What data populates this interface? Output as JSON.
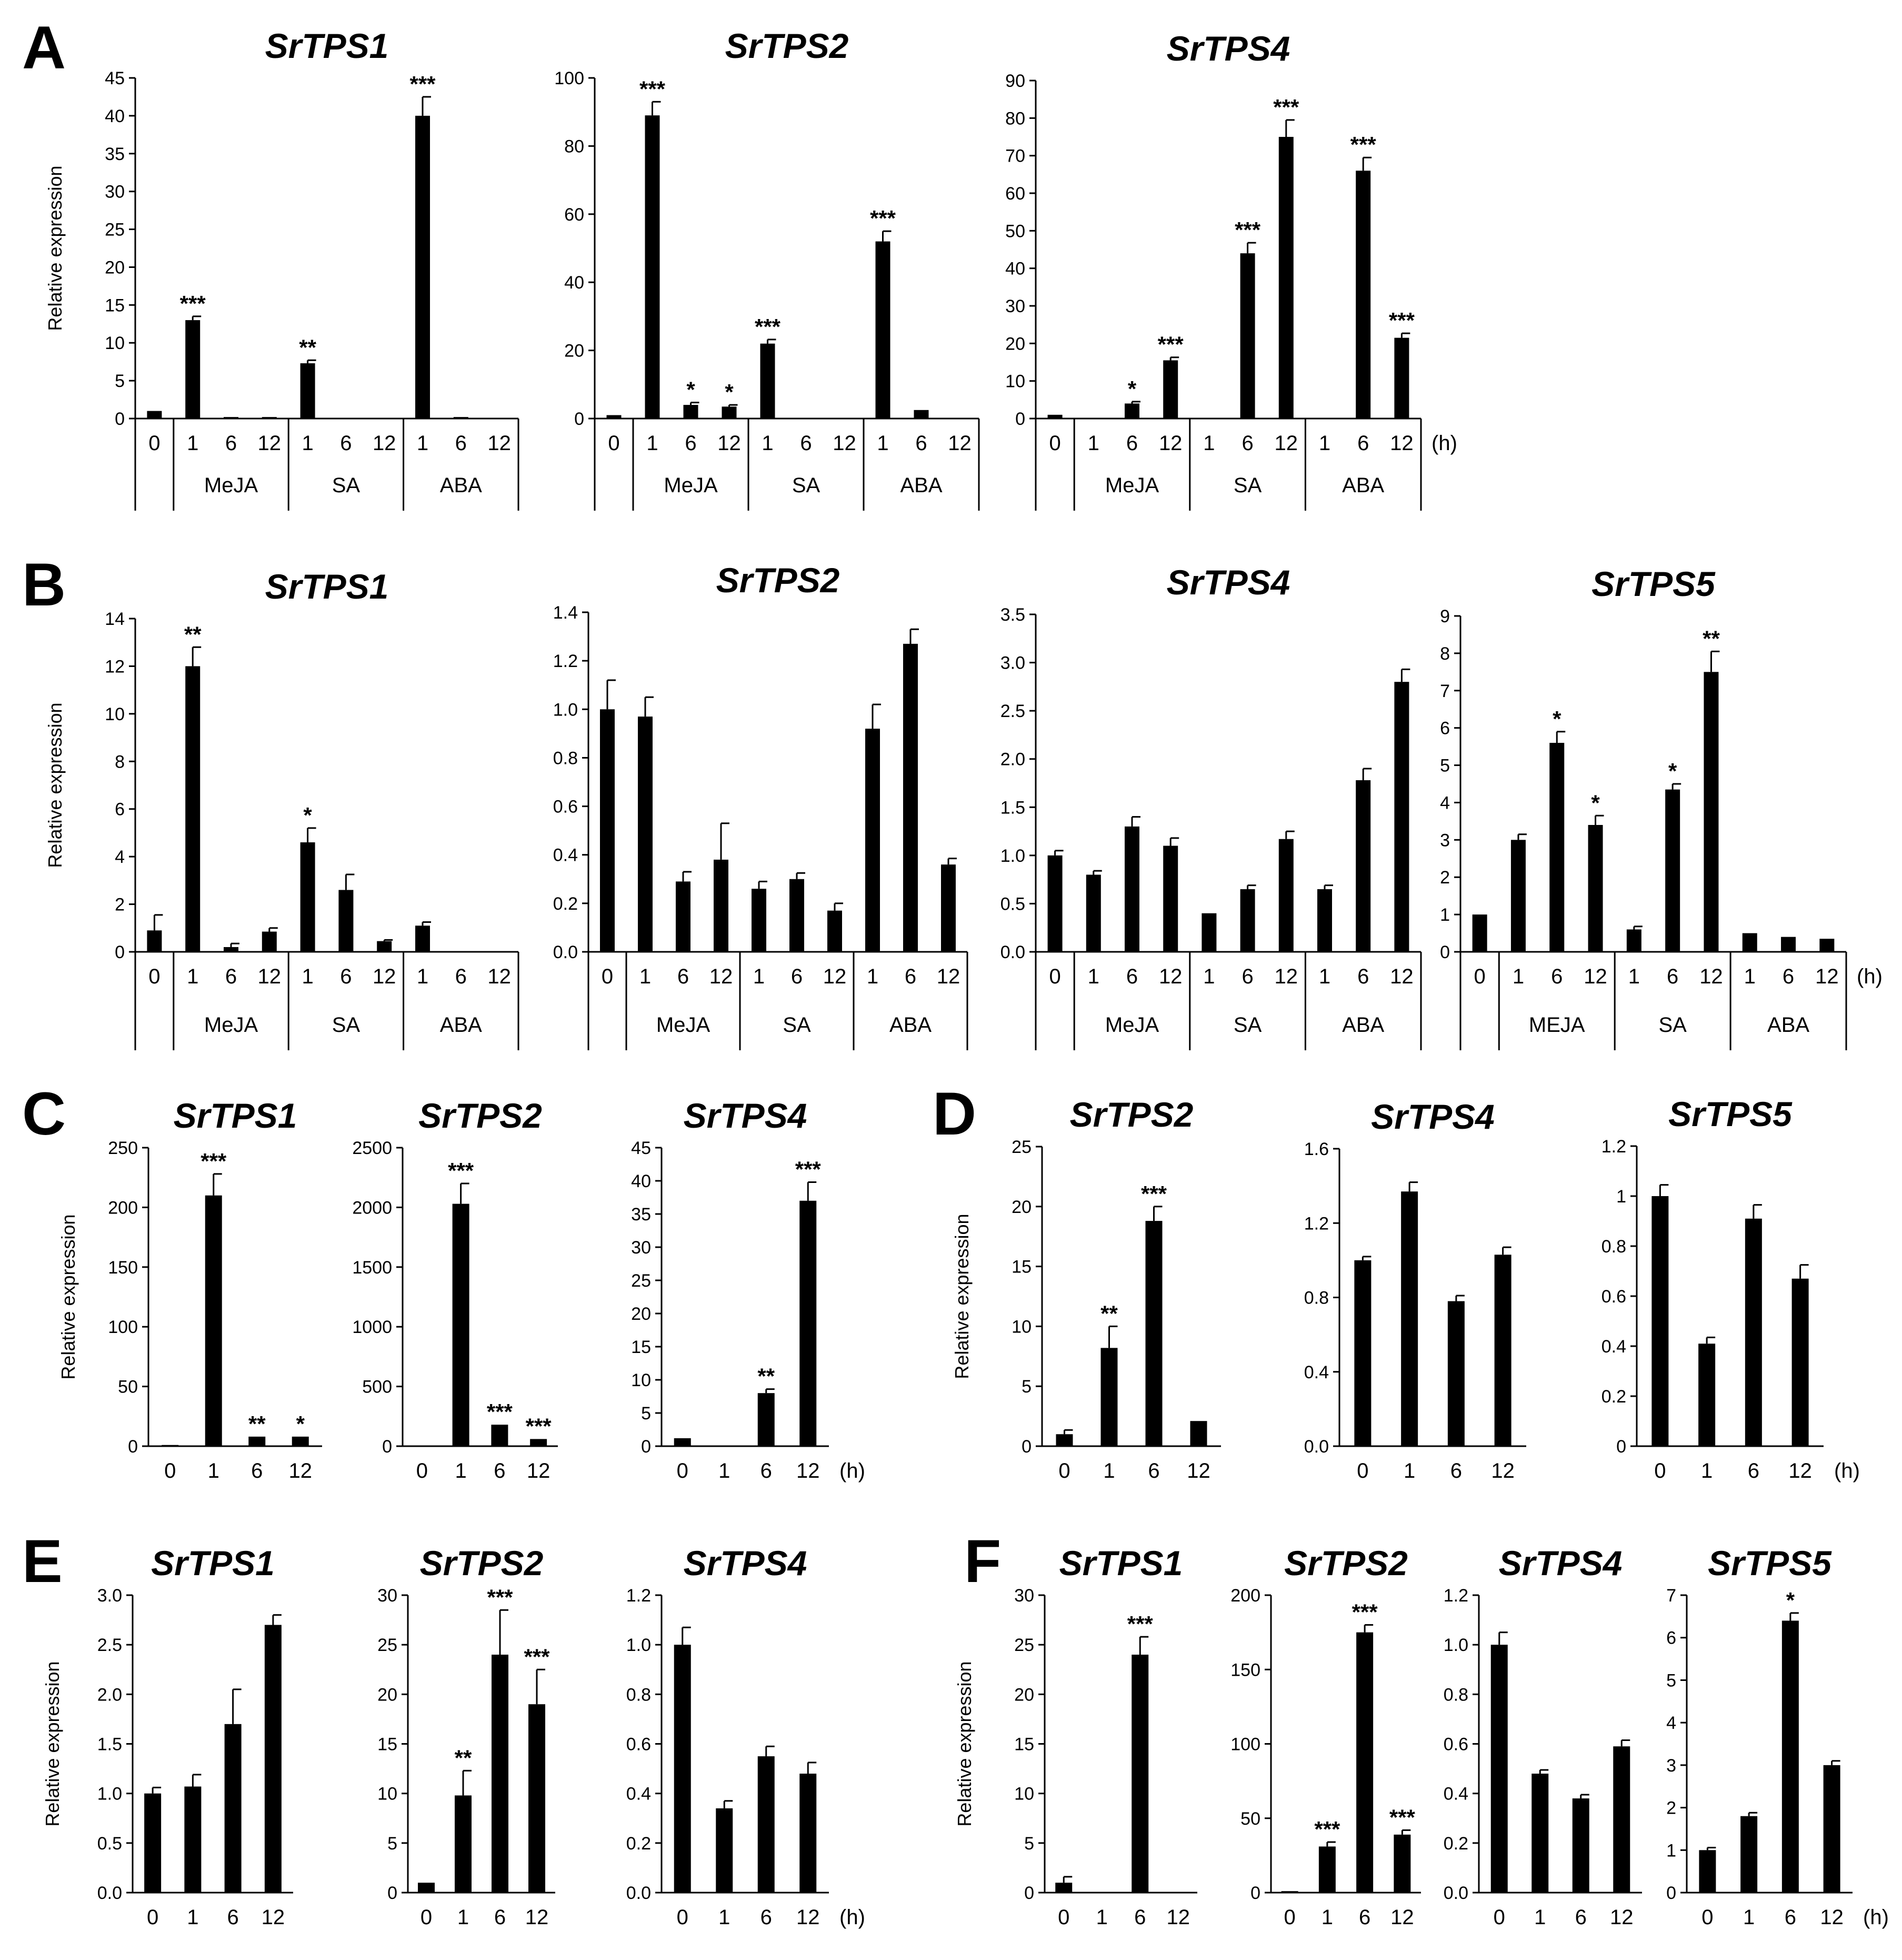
{
  "colors": {
    "bar": "#000000",
    "axis": "#000000",
    "background": "#ffffff"
  },
  "y_label": "Relative expression",
  "hour_unit": "(h)",
  "panel_letters": [
    "A",
    "B",
    "C",
    "D",
    "E",
    "F"
  ],
  "chart_data": [
    {
      "panel": "A",
      "type": "bar",
      "title": "SrTPS1",
      "ylabel": "Relative expression",
      "ylim": [
        0,
        45
      ],
      "yticks": [
        "0",
        "5",
        "10",
        "15",
        "20",
        "25",
        "30",
        "35",
        "40",
        "45"
      ],
      "categories": [
        "0",
        "1",
        "6",
        "12",
        "1",
        "6",
        "12",
        "1",
        "6",
        "12"
      ],
      "groups": [
        "MeJA",
        "SA",
        "ABA"
      ],
      "values": [
        1,
        13,
        0.2,
        0.2,
        7.3,
        0,
        0,
        40,
        0.2,
        0
      ],
      "errors": [
        0,
        0.5,
        0,
        0,
        0.4,
        0,
        0,
        2.5,
        0,
        0
      ],
      "stars": [
        "",
        "***",
        "",
        "",
        "**",
        "",
        "",
        "***",
        "",
        ""
      ]
    },
    {
      "panel": "A",
      "type": "bar",
      "title": "SrTPS2",
      "ylabel": "",
      "ylim": [
        0,
        100
      ],
      "yticks": [
        "0",
        "20",
        "40",
        "60",
        "80",
        "100"
      ],
      "categories": [
        "0",
        "1",
        "6",
        "12",
        "1",
        "6",
        "12",
        "1",
        "6",
        "12"
      ],
      "groups": [
        "MeJA",
        "SA",
        "ABA"
      ],
      "values": [
        1,
        89,
        4,
        3.5,
        22,
        0,
        0,
        52,
        2.5,
        0
      ],
      "errors": [
        0,
        4,
        0.7,
        0.5,
        1.2,
        0,
        0,
        3,
        0,
        0
      ],
      "stars": [
        "",
        "***",
        "*",
        "*",
        "***",
        "",
        "",
        "***",
        "",
        ""
      ]
    },
    {
      "panel": "A",
      "type": "bar",
      "title": "SrTPS4",
      "ylabel": "",
      "ylim": [
        0,
        90
      ],
      "yticks": [
        "0",
        "10",
        "20",
        "30",
        "40",
        "50",
        "60",
        "70",
        "80",
        "90"
      ],
      "categories": [
        "0",
        "1",
        "6",
        "12",
        "1",
        "6",
        "12",
        "1",
        "6",
        "12"
      ],
      "groups": [
        "MeJA",
        "SA",
        "ABA"
      ],
      "values": [
        1,
        0,
        4,
        15.5,
        0,
        44,
        75,
        0,
        66,
        21.5
      ],
      "errors": [
        0,
        0,
        0.5,
        0.8,
        0,
        2.8,
        4.5,
        0,
        3.5,
        1.2
      ],
      "stars": [
        "",
        "",
        "*",
        "***",
        "",
        "***",
        "***",
        "",
        "***",
        "***"
      ],
      "unit": "(h)"
    },
    {
      "panel": "B",
      "type": "bar",
      "title": "SrTPS1",
      "ylabel": "Relative expression",
      "ylim": [
        0,
        14
      ],
      "yticks": [
        "0",
        "2",
        "4",
        "6",
        "8",
        "10",
        "12",
        "14"
      ],
      "categories": [
        "0",
        "1",
        "6",
        "12",
        "1",
        "6",
        "12",
        "1",
        "6",
        "12"
      ],
      "groups": [
        "MeJA",
        "SA",
        "ABA"
      ],
      "values": [
        0.9,
        12,
        0.2,
        0.85,
        4.6,
        2.6,
        0.45,
        1.1,
        0,
        0
      ],
      "errors": [
        0.65,
        0.8,
        0.15,
        0.15,
        0.6,
        0.65,
        0.05,
        0.15,
        0,
        0
      ],
      "stars": [
        "",
        "**",
        "",
        "",
        "*",
        "",
        "",
        "",
        "",
        ""
      ]
    },
    {
      "panel": "B",
      "type": "bar",
      "title": "SrTPS2",
      "ylabel": "",
      "ylim": [
        0,
        1.4
      ],
      "yticks": [
        "0.0",
        "0.2",
        "0.4",
        "0.6",
        "0.8",
        "1.0",
        "1.2",
        "1.4"
      ],
      "categories": [
        "0",
        "1",
        "6",
        "12",
        "1",
        "6",
        "12",
        "1",
        "6",
        "12"
      ],
      "groups": [
        "MeJA",
        "SA",
        "ABA"
      ],
      "values": [
        1.0,
        0.97,
        0.29,
        0.38,
        0.26,
        0.3,
        0.17,
        0.92,
        1.27,
        0.36
      ],
      "errors": [
        0.12,
        0.08,
        0.04,
        0.15,
        0.03,
        0.025,
        0.03,
        0.1,
        0.06,
        0.025
      ],
      "stars": [
        "",
        "",
        "",
        "",
        "",
        "",
        "",
        "",
        "",
        ""
      ]
    },
    {
      "panel": "B",
      "type": "bar",
      "title": "SrTPS4",
      "ylabel": "",
      "ylim": [
        0,
        3.5
      ],
      "yticks": [
        "0.0",
        "0.5",
        "1.0",
        "1.5",
        "2.0",
        "2.5",
        "3.0",
        "3.5"
      ],
      "categories": [
        "0",
        "1",
        "6",
        "12",
        "1",
        "6",
        "12",
        "1",
        "6",
        "12"
      ],
      "groups": [
        "MeJA",
        "SA",
        "ABA"
      ],
      "values": [
        1.0,
        0.8,
        1.3,
        1.1,
        0.4,
        0.65,
        1.17,
        0.65,
        1.78,
        2.8
      ],
      "errors": [
        0.05,
        0.04,
        0.1,
        0.08,
        0,
        0.04,
        0.08,
        0.04,
        0.12,
        0.13
      ],
      "stars": [
        "",
        "",
        "",
        "",
        "",
        "",
        "",
        "",
        "",
        ""
      ]
    },
    {
      "panel": "B",
      "type": "bar",
      "title": "SrTPS5",
      "ylabel": "",
      "ylim": [
        0,
        9
      ],
      "yticks": [
        "0",
        "1",
        "2",
        "3",
        "4",
        "5",
        "6",
        "7",
        "8",
        "9"
      ],
      "categories": [
        "0",
        "1",
        "6",
        "12",
        "1",
        "6",
        "12",
        "1",
        "6",
        "12"
      ],
      "groups": [
        "MEJA",
        "SA",
        "ABA"
      ],
      "values": [
        1,
        3,
        5.6,
        3.4,
        0.6,
        4.35,
        7.5,
        0.5,
        0.4,
        0.35
      ],
      "errors": [
        0,
        0.15,
        0.3,
        0.25,
        0.08,
        0.15,
        0.55,
        0,
        0,
        0
      ],
      "stars": [
        "",
        "",
        "*",
        "*",
        "",
        "*",
        "**",
        "",
        "",
        ""
      ],
      "unit": "(h)"
    },
    {
      "panel": "C",
      "type": "bar",
      "title": "SrTPS1",
      "ylabel": "Relative expression",
      "ylim": [
        0,
        250
      ],
      "yticks": [
        "0",
        "50",
        "100",
        "150",
        "200",
        "250"
      ],
      "categories": [
        "0",
        "1",
        "6",
        "12"
      ],
      "values": [
        1,
        210,
        8,
        8
      ],
      "errors": [
        0,
        18,
        0,
        0
      ],
      "stars": [
        "",
        "***",
        "**",
        "*"
      ]
    },
    {
      "panel": "C",
      "type": "bar",
      "title": "SrTPS2",
      "ylabel": "",
      "ylim": [
        0,
        2500
      ],
      "yticks": [
        "0",
        "500",
        "1000",
        "1500",
        "2000",
        "2500"
      ],
      "categories": [
        "0",
        "1",
        "6",
        "12"
      ],
      "values": [
        0,
        2030,
        180,
        60
      ],
      "errors": [
        0,
        170,
        0,
        0
      ],
      "stars": [
        "",
        "***",
        "***",
        "***"
      ]
    },
    {
      "panel": "C",
      "type": "bar",
      "title": "SrTPS4",
      "ylabel": "",
      "ylim": [
        0,
        45
      ],
      "yticks": [
        "0",
        "5",
        "10",
        "15",
        "20",
        "25",
        "30",
        "35",
        "40",
        "45"
      ],
      "categories": [
        "0",
        "1",
        "6",
        "12"
      ],
      "values": [
        1.2,
        0,
        8,
        37
      ],
      "errors": [
        0,
        0,
        0.6,
        2.8
      ],
      "stars": [
        "",
        "",
        "**",
        "***"
      ],
      "unit": "(h)"
    },
    {
      "panel": "D",
      "type": "bar",
      "title": "SrTPS2",
      "ylabel": "Relative expression",
      "ylim": [
        0,
        25
      ],
      "yticks": [
        "0",
        "5",
        "10",
        "15",
        "20",
        "25"
      ],
      "categories": [
        "0",
        "1",
        "6",
        "12"
      ],
      "values": [
        1,
        8.2,
        18.8,
        2.1
      ],
      "errors": [
        0.35,
        1.8,
        1.2,
        0
      ],
      "stars": [
        "",
        "**",
        "***",
        ""
      ]
    },
    {
      "panel": "D",
      "type": "bar",
      "title": "SrTPS4",
      "ylabel": "",
      "ylim": [
        0,
        1.6
      ],
      "yticks": [
        "0.0",
        "0.4",
        "0.8",
        "1.2",
        "1.6"
      ],
      "categories": [
        "0",
        "1",
        "6",
        "12"
      ],
      "values": [
        1.0,
        1.37,
        0.78,
        1.03
      ],
      "errors": [
        0.02,
        0.05,
        0.03,
        0.04
      ],
      "stars": [
        "",
        "",
        "",
        ""
      ]
    },
    {
      "panel": "D",
      "type": "bar",
      "title": "SrTPS5",
      "ylabel": "",
      "ylim": [
        0,
        1.2
      ],
      "yticks": [
        "0",
        "0.2",
        "0.4",
        "0.6",
        "0.8",
        "1",
        "1.2"
      ],
      "categories": [
        "0",
        "1",
        "6",
        "12"
      ],
      "values": [
        1.0,
        0.41,
        0.91,
        0.67
      ],
      "errors": [
        0.045,
        0.025,
        0.055,
        0.055
      ],
      "stars": [
        "",
        "",
        "",
        ""
      ],
      "unit": "(h)"
    },
    {
      "panel": "E",
      "type": "bar",
      "title": "SrTPS1",
      "ylabel": "Relative expression",
      "ylim": [
        0,
        3.0
      ],
      "yticks": [
        "0.0",
        "0.5",
        "1.0",
        "1.5",
        "2.0",
        "2.5",
        "3.0"
      ],
      "categories": [
        "0",
        "1",
        "6",
        "12"
      ],
      "values": [
        1.0,
        1.07,
        1.7,
        2.7
      ],
      "errors": [
        0.06,
        0.12,
        0.35,
        0.1
      ],
      "stars": [
        "",
        "",
        "",
        ""
      ]
    },
    {
      "panel": "E",
      "type": "bar",
      "title": "SrTPS2",
      "ylabel": "",
      "ylim": [
        0,
        30
      ],
      "yticks": [
        "0",
        "5",
        "10",
        "15",
        "20",
        "25",
        "30"
      ],
      "categories": [
        "0",
        "1",
        "6",
        "12"
      ],
      "values": [
        1,
        9.8,
        24,
        19
      ],
      "errors": [
        0,
        2.5,
        4.5,
        3.5
      ],
      "stars": [
        "",
        "**",
        "***",
        "***"
      ]
    },
    {
      "panel": "E",
      "type": "bar",
      "title": "SrTPS4",
      "ylabel": "",
      "ylim": [
        0,
        1.2
      ],
      "yticks": [
        "0.0",
        "0.2",
        "0.4",
        "0.6",
        "0.8",
        "1.0",
        "1.2"
      ],
      "categories": [
        "0",
        "1",
        "6",
        "12"
      ],
      "values": [
        1.0,
        0.34,
        0.55,
        0.48
      ],
      "errors": [
        0.07,
        0.03,
        0.04,
        0.045
      ],
      "stars": [
        "",
        "",
        "",
        ""
      ],
      "unit": "(h)"
    },
    {
      "panel": "F",
      "type": "bar",
      "title": "SrTPS1",
      "ylabel": "Relative expression",
      "ylim": [
        0,
        30
      ],
      "yticks": [
        "0",
        "5",
        "10",
        "15",
        "20",
        "25",
        "30"
      ],
      "categories": [
        "0",
        "1",
        "6",
        "12"
      ],
      "values": [
        1,
        0,
        24,
        0
      ],
      "errors": [
        0.6,
        0,
        1.8,
        0
      ],
      "stars": [
        "",
        "",
        "***",
        ""
      ]
    },
    {
      "panel": "F",
      "type": "bar",
      "title": "SrTPS2",
      "ylabel": "",
      "ylim": [
        0,
        200
      ],
      "yticks": [
        "0",
        "50",
        "100",
        "150",
        "200"
      ],
      "categories": [
        "0",
        "1",
        "6",
        "12"
      ],
      "values": [
        1,
        31,
        175,
        39
      ],
      "errors": [
        0,
        3,
        5,
        3
      ],
      "stars": [
        "",
        "***",
        "***",
        "***"
      ]
    },
    {
      "panel": "F",
      "type": "bar",
      "title": "SrTPS4",
      "ylabel": "",
      "ylim": [
        0,
        1.2
      ],
      "yticks": [
        "0.0",
        "0.2",
        "0.4",
        "0.6",
        "0.8",
        "1.0",
        "1.2"
      ],
      "categories": [
        "0",
        "1",
        "6",
        "12"
      ],
      "values": [
        1.0,
        0.48,
        0.38,
        0.59
      ],
      "errors": [
        0.05,
        0.015,
        0.015,
        0.025
      ],
      "stars": [
        "",
        "",
        "",
        ""
      ]
    },
    {
      "panel": "F",
      "type": "bar",
      "title": "SrTPS5",
      "ylabel": "",
      "ylim": [
        0,
        7
      ],
      "yticks": [
        "0",
        "1",
        "2",
        "3",
        "4",
        "5",
        "6",
        "7"
      ],
      "categories": [
        "0",
        "1",
        "6",
        "12"
      ],
      "values": [
        1.0,
        1.8,
        6.4,
        3.0
      ],
      "errors": [
        0.06,
        0.08,
        0.18,
        0.1
      ],
      "stars": [
        "",
        "",
        "*",
        ""
      ],
      "unit": "(h)"
    }
  ]
}
